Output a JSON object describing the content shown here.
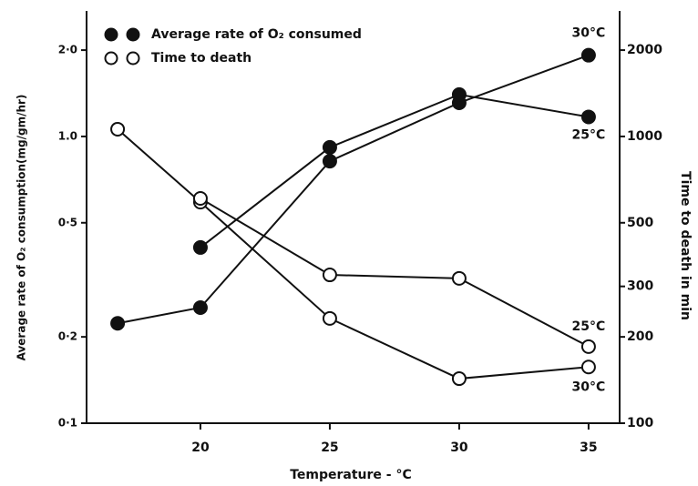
{
  "chart_data": {
    "type": "line",
    "xlabel": "Temperature - °C",
    "ylabel": "Average rate of O₂ consumption(mg/gm/hr)",
    "y2label": "Time to death in min",
    "xlim": [
      15.6,
      36.2
    ],
    "xticks": [
      20,
      25,
      30,
      35
    ],
    "ylim": [
      0.1,
      2.74
    ],
    "yscale": "log",
    "yticks": [
      {
        "value": 0.1,
        "label": "0·1"
      },
      {
        "value": 0.2,
        "label": "0·2"
      },
      {
        "value": 0.5,
        "label": "0·5"
      },
      {
        "value": 1.0,
        "label": "1.0"
      },
      {
        "value": 2.0,
        "label": "2·0"
      }
    ],
    "y2lim": [
      100,
      2740
    ],
    "y2scale": "log",
    "y2ticks": [
      100,
      200,
      300,
      500,
      1000,
      2000
    ],
    "legend": [
      {
        "label": "Average rate of O₂ consumed",
        "marker": "filled"
      },
      {
        "label": "Time to death",
        "marker": "open"
      }
    ],
    "series": [
      {
        "name": "30°C",
        "marker": "filled",
        "color": "#111",
        "x": [
          16.8,
          20,
          25,
          30,
          35
        ],
        "values": [
          0.223,
          0.253,
          0.82,
          1.31,
          1.92
        ]
      },
      {
        "name": "25°C",
        "marker": "filled",
        "color": "#111",
        "x": [
          20,
          25,
          30,
          35
        ],
        "values": [
          0.41,
          0.916,
          1.4,
          1.17
        ]
      },
      {
        "name": "30°C",
        "marker": "open",
        "axis": "y2",
        "color": "#111",
        "x": [
          16.8,
          20,
          25,
          30,
          35
        ],
        "values": [
          1060,
          590,
          232,
          143,
          157
        ]
      },
      {
        "name": "25°C",
        "marker": "open",
        "axis": "y2",
        "color": "#111",
        "x": [
          20,
          25,
          30,
          35
        ],
        "values": [
          608,
          329,
          320,
          185
        ]
      }
    ]
  }
}
